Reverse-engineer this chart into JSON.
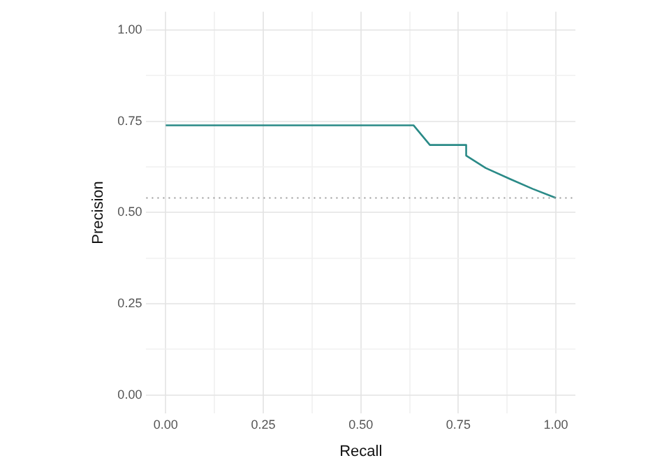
{
  "chart_data": {
    "type": "line",
    "xlabel": "Recall",
    "ylabel": "Precision",
    "xlim": [
      -0.05,
      1.05
    ],
    "ylim": [
      -0.05,
      1.05
    ],
    "xticks": [
      {
        "value": 0,
        "label": "0.00"
      },
      {
        "value": 0.125,
        "label": null
      },
      {
        "value": 0.25,
        "label": "0.25"
      },
      {
        "value": 0.375,
        "label": null
      },
      {
        "value": 0.5,
        "label": "0.50"
      },
      {
        "value": 0.625,
        "label": null
      },
      {
        "value": 0.75,
        "label": "0.75"
      },
      {
        "value": 0.875,
        "label": null
      },
      {
        "value": 1,
        "label": "1.00"
      }
    ],
    "yticks": [
      {
        "value": 0,
        "label": "0.00"
      },
      {
        "value": 0.125,
        "label": null
      },
      {
        "value": 0.25,
        "label": "0.25"
      },
      {
        "value": 0.375,
        "label": null
      },
      {
        "value": 0.5,
        "label": "0.50"
      },
      {
        "value": 0.625,
        "label": null
      },
      {
        "value": 0.75,
        "label": "0.75"
      },
      {
        "value": 0.875,
        "label": null
      },
      {
        "value": 1,
        "label": "1.00"
      }
    ],
    "grid": true,
    "legend": false,
    "marker": "none",
    "line_style": "solid",
    "ref_lines": [
      {
        "axis": "y",
        "value": 0.54,
        "color": "#999999",
        "line_style": "dotted"
      }
    ],
    "series": [
      {
        "color": "#2a8a87",
        "x": [
          0,
          0.635,
          0.677,
          0.77,
          0.77,
          0.82,
          0.882,
          0.94,
          1
        ],
        "values": [
          0.739,
          0.739,
          0.685,
          0.685,
          0.656,
          0.622,
          0.592,
          0.565,
          0.54
        ]
      }
    ]
  }
}
